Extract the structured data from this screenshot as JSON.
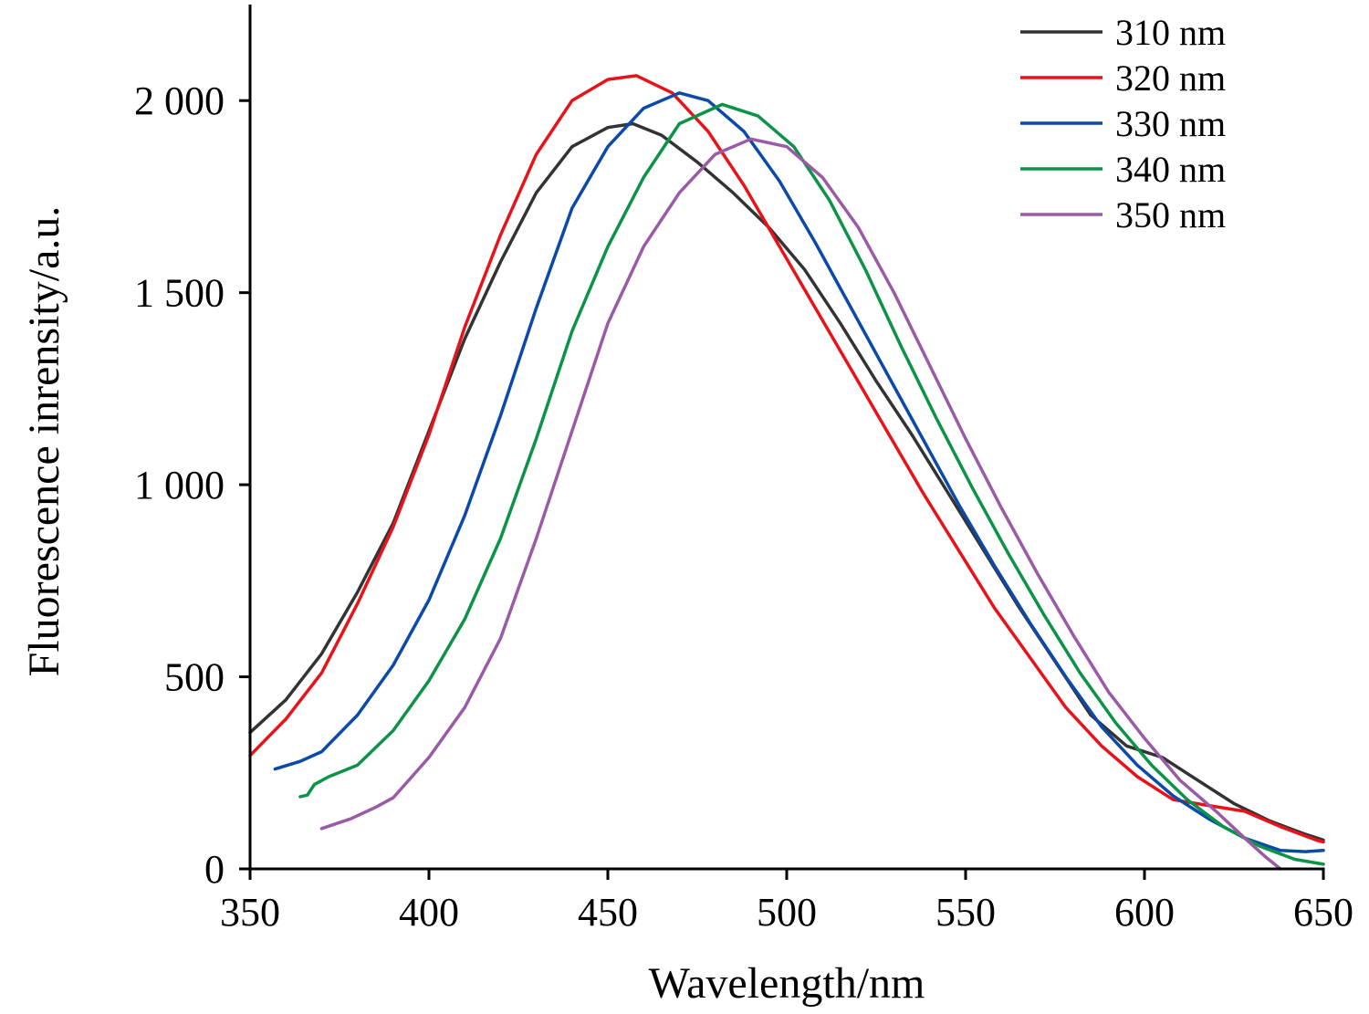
{
  "chart_data": {
    "type": "line",
    "title": "",
    "xlabel": "Wavelength/nm",
    "ylabel": "Fluorescence inrensity/a.u.",
    "xlim": [
      350,
      650
    ],
    "ylim": [
      0,
      2250
    ],
    "xticks": [
      350,
      400,
      450,
      500,
      550,
      600,
      650
    ],
    "xtick_labels": [
      "350",
      "400",
      "450",
      "500",
      "550",
      "600",
      "650"
    ],
    "yticks": [
      0,
      500,
      1000,
      1500,
      2000
    ],
    "ytick_labels": [
      "0",
      "500",
      "1 000",
      "1 500",
      "2 000"
    ],
    "grid": false,
    "legend_position": "top-right",
    "series": [
      {
        "name": "310 nm",
        "color": "#333333",
        "points": [
          [
            350,
            355
          ],
          [
            360,
            440
          ],
          [
            370,
            560
          ],
          [
            380,
            720
          ],
          [
            390,
            900
          ],
          [
            400,
            1140
          ],
          [
            410,
            1380
          ],
          [
            420,
            1580
          ],
          [
            430,
            1760
          ],
          [
            440,
            1880
          ],
          [
            450,
            1930
          ],
          [
            457,
            1940
          ],
          [
            465,
            1910
          ],
          [
            475,
            1840
          ],
          [
            485,
            1760
          ],
          [
            495,
            1670
          ],
          [
            505,
            1560
          ],
          [
            515,
            1420
          ],
          [
            525,
            1270
          ],
          [
            535,
            1130
          ],
          [
            545,
            980
          ],
          [
            555,
            830
          ],
          [
            565,
            680
          ],
          [
            575,
            540
          ],
          [
            585,
            400
          ],
          [
            595,
            320
          ],
          [
            605,
            290
          ],
          [
            615,
            230
          ],
          [
            625,
            170
          ],
          [
            635,
            125
          ],
          [
            645,
            90
          ],
          [
            650,
            75
          ]
        ]
      },
      {
        "name": "320 nm",
        "color": "#e8131a",
        "points": [
          [
            350,
            295
          ],
          [
            360,
            390
          ],
          [
            370,
            510
          ],
          [
            380,
            690
          ],
          [
            390,
            890
          ],
          [
            400,
            1130
          ],
          [
            410,
            1410
          ],
          [
            420,
            1650
          ],
          [
            430,
            1860
          ],
          [
            440,
            2000
          ],
          [
            450,
            2055
          ],
          [
            458,
            2065
          ],
          [
            468,
            2020
          ],
          [
            478,
            1920
          ],
          [
            488,
            1780
          ],
          [
            498,
            1620
          ],
          [
            508,
            1460
          ],
          [
            518,
            1300
          ],
          [
            528,
            1140
          ],
          [
            538,
            980
          ],
          [
            548,
            830
          ],
          [
            558,
            680
          ],
          [
            568,
            550
          ],
          [
            578,
            420
          ],
          [
            588,
            320
          ],
          [
            598,
            240
          ],
          [
            608,
            180
          ],
          [
            618,
            165
          ],
          [
            628,
            150
          ],
          [
            638,
            110
          ],
          [
            648,
            75
          ],
          [
            650,
            70
          ]
        ]
      },
      {
        "name": "330 nm",
        "color": "#0b4aa8",
        "points": [
          [
            357,
            260
          ],
          [
            364,
            280
          ],
          [
            370,
            305
          ],
          [
            380,
            400
          ],
          [
            390,
            530
          ],
          [
            400,
            700
          ],
          [
            410,
            920
          ],
          [
            420,
            1180
          ],
          [
            430,
            1460
          ],
          [
            440,
            1720
          ],
          [
            450,
            1880
          ],
          [
            460,
            1980
          ],
          [
            470,
            2020
          ],
          [
            478,
            2000
          ],
          [
            488,
            1920
          ],
          [
            498,
            1790
          ],
          [
            508,
            1630
          ],
          [
            518,
            1460
          ],
          [
            528,
            1290
          ],
          [
            538,
            1120
          ],
          [
            548,
            950
          ],
          [
            558,
            790
          ],
          [
            568,
            640
          ],
          [
            578,
            500
          ],
          [
            588,
            370
          ],
          [
            598,
            270
          ],
          [
            608,
            190
          ],
          [
            618,
            130
          ],
          [
            628,
            80
          ],
          [
            638,
            48
          ],
          [
            645,
            45
          ],
          [
            650,
            48
          ]
        ]
      },
      {
        "name": "340 nm",
        "color": "#0d9348",
        "points": [
          [
            364,
            188
          ],
          [
            366,
            192
          ],
          [
            368,
            220
          ],
          [
            372,
            240
          ],
          [
            380,
            270
          ],
          [
            390,
            360
          ],
          [
            400,
            490
          ],
          [
            410,
            650
          ],
          [
            420,
            860
          ],
          [
            430,
            1120
          ],
          [
            440,
            1400
          ],
          [
            450,
            1620
          ],
          [
            460,
            1800
          ],
          [
            470,
            1940
          ],
          [
            482,
            1990
          ],
          [
            492,
            1960
          ],
          [
            502,
            1880
          ],
          [
            512,
            1740
          ],
          [
            522,
            1560
          ],
          [
            532,
            1360
          ],
          [
            542,
            1170
          ],
          [
            552,
            990
          ],
          [
            562,
            820
          ],
          [
            572,
            660
          ],
          [
            582,
            510
          ],
          [
            592,
            380
          ],
          [
            602,
            270
          ],
          [
            612,
            180
          ],
          [
            622,
            110
          ],
          [
            632,
            60
          ],
          [
            642,
            25
          ],
          [
            650,
            12
          ]
        ]
      },
      {
        "name": "350 nm",
        "color": "#9a5ba6",
        "points": [
          [
            370,
            105
          ],
          [
            378,
            130
          ],
          [
            385,
            160
          ],
          [
            390,
            185
          ],
          [
            400,
            290
          ],
          [
            410,
            420
          ],
          [
            420,
            600
          ],
          [
            430,
            860
          ],
          [
            440,
            1140
          ],
          [
            450,
            1420
          ],
          [
            460,
            1620
          ],
          [
            470,
            1760
          ],
          [
            480,
            1860
          ],
          [
            490,
            1900
          ],
          [
            500,
            1880
          ],
          [
            510,
            1800
          ],
          [
            520,
            1670
          ],
          [
            530,
            1500
          ],
          [
            540,
            1310
          ],
          [
            550,
            1120
          ],
          [
            560,
            940
          ],
          [
            570,
            770
          ],
          [
            580,
            610
          ],
          [
            590,
            460
          ],
          [
            600,
            340
          ],
          [
            610,
            230
          ],
          [
            620,
            150
          ],
          [
            628,
            80
          ],
          [
            634,
            30
          ],
          [
            638,
            0
          ]
        ]
      }
    ]
  }
}
